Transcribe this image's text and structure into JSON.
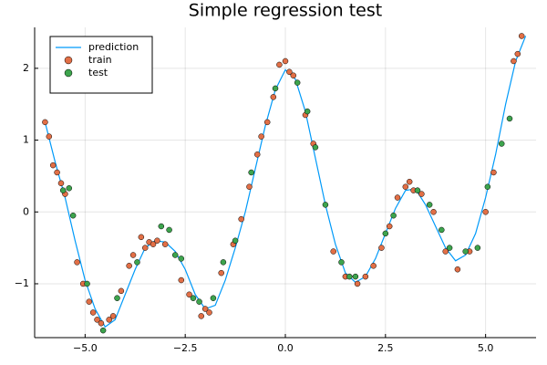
{
  "chart_data": {
    "type": "line",
    "title": "Simple regression test",
    "xlim": [
      -6.26,
      6.26
    ],
    "ylim": [
      -1.75,
      2.57
    ],
    "xticks": [
      {
        "value": -5,
        "label": "−5.0"
      },
      {
        "value": -2.5,
        "label": "−2.5"
      },
      {
        "value": 0,
        "label": "0.0"
      },
      2.5,
      {
        "value": 5,
        "label": "5.0"
      }
    ],
    "yticks": [
      {
        "value": -1,
        "label": "−1"
      },
      0,
      1,
      2
    ],
    "grid": true,
    "legend": "top-left",
    "series": [
      {
        "name": "prediction",
        "type": "line",
        "color": "#009af9",
        "x": [
          -6.0,
          -5.75,
          -5.5,
          -5.25,
          -5.0,
          -4.75,
          -4.5,
          -4.25,
          -4.0,
          -3.75,
          -3.5,
          -3.25,
          -3.0,
          -2.75,
          -2.5,
          -2.25,
          -2.0,
          -1.75,
          -1.5,
          -1.25,
          -1.0,
          -0.75,
          -0.5,
          -0.25,
          0.0,
          0.25,
          0.5,
          0.75,
          1.0,
          1.25,
          1.5,
          1.75,
          2.0,
          2.25,
          2.5,
          2.75,
          3.0,
          3.25,
          3.5,
          3.75,
          4.0,
          4.25,
          4.5,
          4.75,
          5.0,
          5.25,
          5.5,
          5.75,
          6.0
        ],
        "values": [
          1.25,
          0.7,
          0.2,
          -0.4,
          -0.95,
          -1.35,
          -1.6,
          -1.5,
          -1.15,
          -0.8,
          -0.5,
          -0.4,
          -0.42,
          -0.55,
          -0.8,
          -1.15,
          -1.35,
          -1.3,
          -0.95,
          -0.5,
          0.0,
          0.6,
          1.2,
          1.7,
          1.98,
          1.85,
          1.4,
          0.75,
          0.1,
          -0.45,
          -0.85,
          -0.98,
          -0.9,
          -0.65,
          -0.3,
          0.05,
          0.3,
          0.32,
          0.1,
          -0.2,
          -0.5,
          -0.68,
          -0.6,
          -0.3,
          0.2,
          0.8,
          1.5,
          2.1,
          2.45
        ]
      },
      {
        "name": "train",
        "type": "scatter",
        "color": "#e26f46",
        "x": [
          -6.0,
          -5.9,
          -5.8,
          -5.7,
          -5.6,
          -5.5,
          -5.2,
          -5.05,
          -4.9,
          -4.8,
          -4.7,
          -4.6,
          -4.4,
          -4.3,
          -4.1,
          -3.9,
          -3.8,
          -3.6,
          -3.5,
          -3.4,
          -3.3,
          -3.2,
          -3.0,
          -2.6,
          -2.4,
          -2.1,
          -2.0,
          -1.9,
          -1.6,
          -1.3,
          -1.1,
          -0.9,
          -0.7,
          -0.6,
          -0.45,
          -0.3,
          -0.15,
          0.0,
          0.1,
          0.2,
          0.5,
          0.7,
          1.2,
          1.5,
          1.8,
          2.0,
          2.2,
          2.4,
          2.6,
          2.8,
          3.0,
          3.1,
          3.2,
          3.4,
          3.7,
          4.0,
          4.3,
          4.6,
          5.0,
          5.2,
          5.7,
          5.8,
          5.9
        ],
        "values": [
          1.25,
          1.05,
          0.65,
          0.55,
          0.4,
          0.25,
          -0.7,
          -1.0,
          -1.25,
          -1.4,
          -1.5,
          -1.55,
          -1.5,
          -1.45,
          -1.1,
          -0.75,
          -0.6,
          -0.35,
          -0.5,
          -0.42,
          -0.45,
          -0.4,
          -0.45,
          -0.95,
          -1.15,
          -1.45,
          -1.35,
          -1.4,
          -0.85,
          -0.45,
          -0.1,
          0.35,
          0.8,
          1.05,
          1.25,
          1.6,
          2.05,
          2.1,
          1.95,
          1.9,
          1.35,
          0.95,
          -0.55,
          -0.9,
          -1.0,
          -0.9,
          -0.75,
          -0.5,
          -0.2,
          0.2,
          0.35,
          0.42,
          0.3,
          0.25,
          0.0,
          -0.55,
          -0.8,
          -0.55,
          0.0,
          0.55,
          2.1,
          2.2,
          2.45
        ]
      },
      {
        "name": "test",
        "type": "scatter",
        "color": "#3da44d",
        "x": [
          -5.55,
          -5.4,
          -5.3,
          -4.95,
          -4.55,
          -4.2,
          -3.7,
          -3.1,
          -2.9,
          -2.75,
          -2.6,
          -2.3,
          -2.15,
          -1.8,
          -1.55,
          -1.25,
          -0.85,
          -0.25,
          0.3,
          0.55,
          0.75,
          1.0,
          1.4,
          1.6,
          1.75,
          2.5,
          2.7,
          3.3,
          3.6,
          3.9,
          4.1,
          4.5,
          4.8,
          5.05,
          5.4,
          5.6
        ],
        "values": [
          0.3,
          0.33,
          -0.05,
          -1.0,
          -1.65,
          -1.2,
          -0.7,
          -0.2,
          -0.25,
          -0.6,
          -0.65,
          -1.2,
          -1.25,
          -1.2,
          -0.7,
          -0.4,
          0.55,
          1.72,
          1.8,
          1.4,
          0.9,
          0.1,
          -0.7,
          -0.9,
          -0.9,
          -0.3,
          -0.05,
          0.3,
          0.1,
          -0.25,
          -0.5,
          -0.55,
          -0.5,
          0.35,
          0.95,
          1.3
        ]
      }
    ]
  }
}
